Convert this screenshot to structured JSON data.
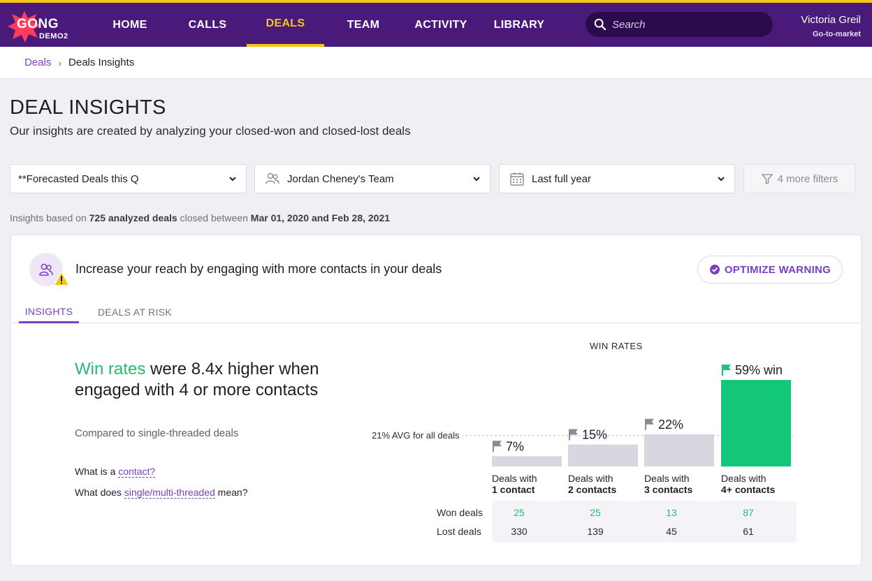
{
  "logo": {
    "name": "GONG",
    "sub": "DEMO2"
  },
  "nav": {
    "items": [
      {
        "label": "HOME"
      },
      {
        "label": "CALLS"
      },
      {
        "label": "DEALS"
      },
      {
        "label": "TEAM"
      },
      {
        "label": "ACTIVITY"
      },
      {
        "label": "LIBRARY"
      }
    ],
    "active": "DEALS"
  },
  "search": {
    "placeholder": "Search"
  },
  "user": {
    "name": "Victoria Greil",
    "role": "Go-to-market"
  },
  "breadcrumb": {
    "parent": "Deals",
    "current": "Deals Insights"
  },
  "page": {
    "title": "DEAL INSIGHTS",
    "subtitle": "Our insights are created by analyzing your closed-won and closed-lost deals"
  },
  "filters": {
    "deals": "**Forecasted Deals this Q",
    "team": "Jordan Cheney's Team",
    "period": "Last full year",
    "more": "4 more filters"
  },
  "insight_info": {
    "prefix": "Insights based on",
    "count": "725 analyzed deals",
    "middle": "closed between",
    "range": "Mar 01, 2020 and Feb 28, 2021"
  },
  "card": {
    "title": "Increase your reach by engaging with more contacts in your deals",
    "optimize_label": "OPTIMIZE WARNING",
    "tabs": [
      {
        "label": "INSIGHTS"
      },
      {
        "label": "DEALS AT RISK"
      }
    ],
    "headline_green": "Win rates",
    "headline_rest": " were 8.4x higher when engaged with 4 or more contacts",
    "compared": "Compared to single-threaded deals",
    "q1_prefix": "What is a ",
    "q1_link": "contact?",
    "q2_prefix": "What does ",
    "q2_link": "single/multi-threaded",
    "q2_suffix": " mean?"
  },
  "chart_data": {
    "type": "bar",
    "title": "WIN RATES",
    "categories": [
      "Deals with 1 contact",
      "Deals with 2 contacts",
      "Deals with 3 contacts",
      "Deals with 4+ contacts"
    ],
    "category_lines": [
      {
        "top": "Deals with",
        "bottom": "1 contact"
      },
      {
        "top": "Deals with",
        "bottom": "2 contacts"
      },
      {
        "top": "Deals with",
        "bottom": "3 contacts"
      },
      {
        "top": "Deals with",
        "bottom": "4+ contacts"
      }
    ],
    "values": [
      7,
      15,
      22,
      59
    ],
    "value_labels": [
      "7%",
      "15%",
      "22%",
      "59% win"
    ],
    "avg": 21,
    "avg_label": "21% AVG for all deals",
    "won_label": "Won deals",
    "lost_label": "Lost deals",
    "won_deals": [
      25,
      25,
      13,
      87
    ],
    "lost_deals": [
      330,
      139,
      45,
      61
    ],
    "colors": {
      "bar": "#d9d6e0",
      "highlight": "#13c77a",
      "flag_gray": "#8a8a98",
      "flag_green": "#13c77a"
    },
    "ylim": [
      0,
      60
    ]
  }
}
